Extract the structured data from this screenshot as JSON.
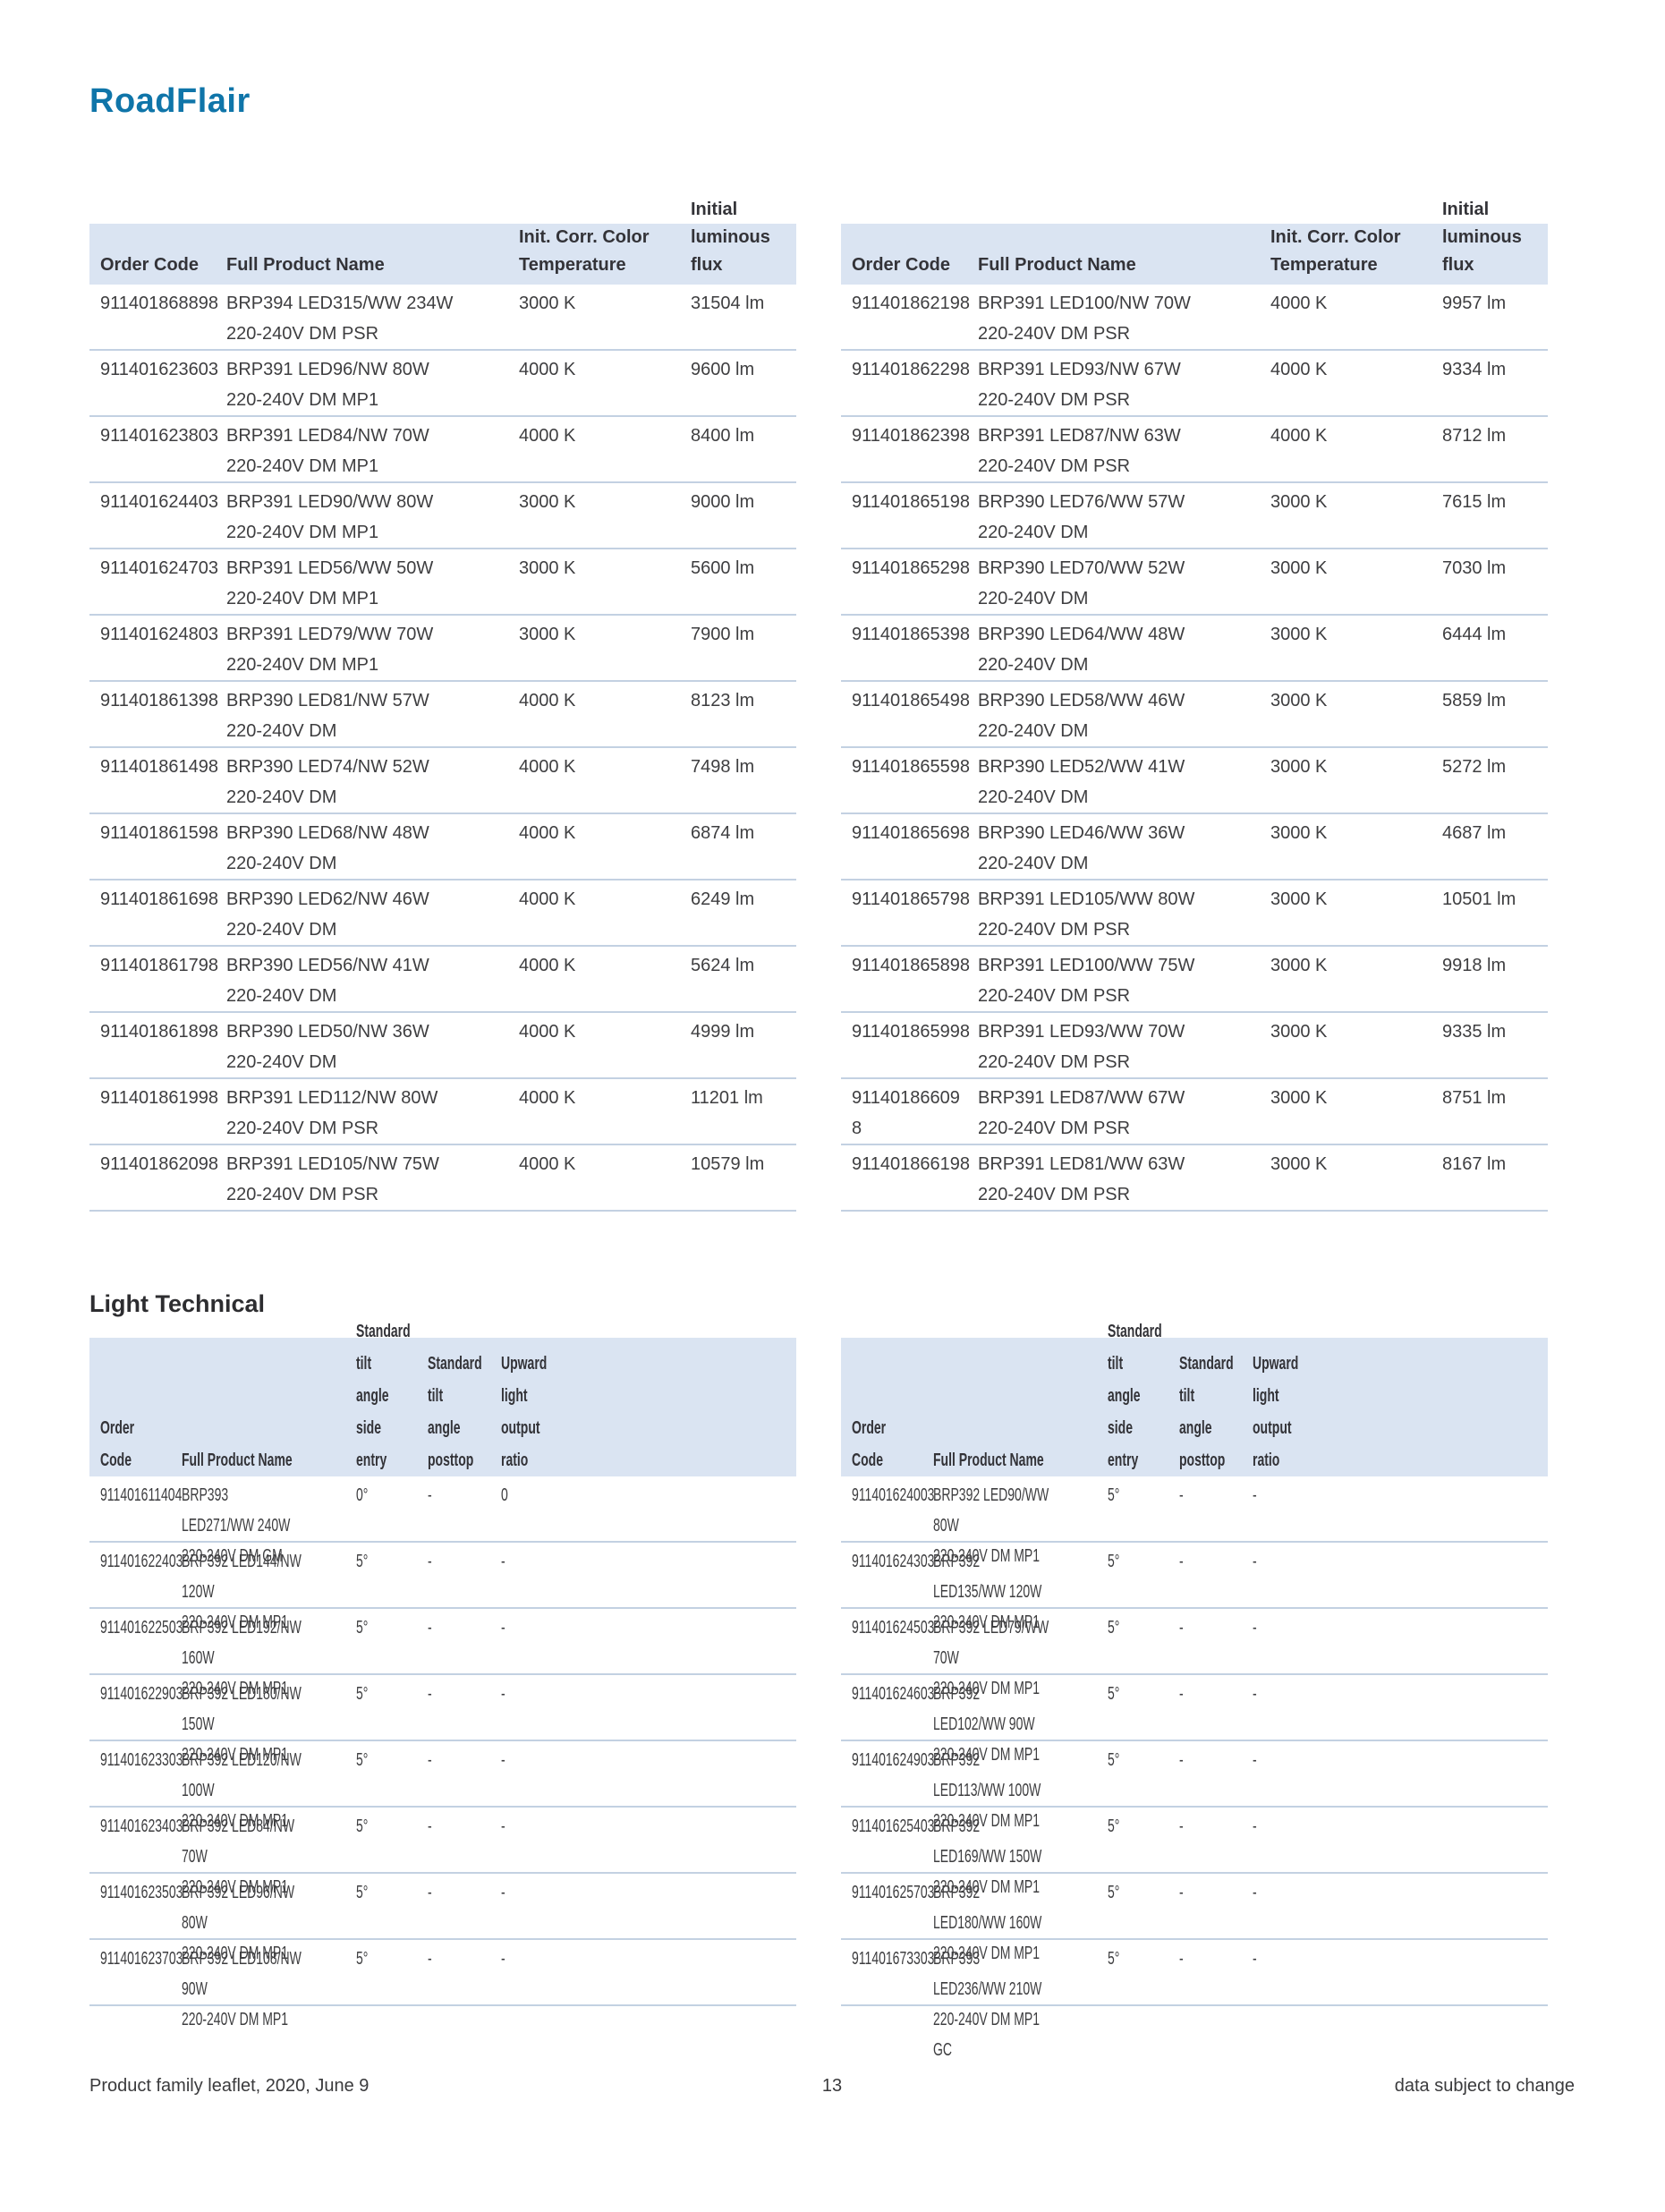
{
  "page": {
    "title": "RoadFlair",
    "section_light_technical": "Light Technical",
    "footer": {
      "left": "Product family leaflet, 2020, June 9",
      "page_number": "13",
      "right": "data subject to change"
    }
  },
  "colors": {
    "title_blue": "#0f75a9",
    "table_header_bg": "#dae4f2",
    "row_separator": "#c3d1e2",
    "body_text": "#3e3e40"
  },
  "ordering_tables": {
    "headers": {
      "order_code": "Order Code",
      "product_name": "Full Product Name",
      "temp_line1": "Init. Corr. Color",
      "temp_line2": "Temperature",
      "flux_line1": "Initial luminous",
      "flux_line2": "flux"
    },
    "left_rows": [
      {
        "code": "911401868898",
        "name_line1": "BRP394 LED315/WW 234W",
        "name_line2": "220-240V DM PSR",
        "temp": "3000 K",
        "flux": "31504 lm"
      },
      {
        "code": "911401623603",
        "name_line1": "BRP391 LED96/NW 80W",
        "name_line2": "220-240V DM MP1",
        "temp": "4000 K",
        "flux": "9600 lm"
      },
      {
        "code": "911401623803",
        "name_line1": "BRP391 LED84/NW 70W",
        "name_line2": "220-240V DM MP1",
        "temp": "4000 K",
        "flux": "8400 lm"
      },
      {
        "code": "911401624403",
        "name_line1": "BRP391 LED90/WW 80W",
        "name_line2": "220-240V DM MP1",
        "temp": "3000 K",
        "flux": "9000 lm"
      },
      {
        "code": "911401624703",
        "name_line1": "BRP391 LED56/WW 50W",
        "name_line2": "220-240V DM MP1",
        "temp": "3000 K",
        "flux": "5600 lm"
      },
      {
        "code": "911401624803",
        "name_line1": "BRP391 LED79/WW 70W",
        "name_line2": "220-240V DM MP1",
        "temp": "3000 K",
        "flux": "7900 lm"
      },
      {
        "code": "911401861398",
        "name_line1": "BRP390 LED81/NW 57W",
        "name_line2": "220-240V DM",
        "temp": "4000 K",
        "flux": "8123 lm"
      },
      {
        "code": "911401861498",
        "name_line1": "BRP390 LED74/NW 52W",
        "name_line2": "220-240V DM",
        "temp": "4000 K",
        "flux": "7498 lm"
      },
      {
        "code": "911401861598",
        "name_line1": "BRP390 LED68/NW 48W",
        "name_line2": "220-240V DM",
        "temp": "4000 K",
        "flux": "6874 lm"
      },
      {
        "code": "911401861698",
        "name_line1": "BRP390 LED62/NW 46W",
        "name_line2": "220-240V DM",
        "temp": "4000 K",
        "flux": "6249 lm"
      },
      {
        "code": "911401861798",
        "name_line1": "BRP390 LED56/NW 41W",
        "name_line2": "220-240V DM",
        "temp": "4000 K",
        "flux": "5624 lm"
      },
      {
        "code": "911401861898",
        "name_line1": "BRP390 LED50/NW 36W",
        "name_line2": "220-240V DM",
        "temp": "4000 K",
        "flux": "4999 lm"
      },
      {
        "code": "911401861998",
        "name_line1": "BRP391 LED112/NW 80W",
        "name_line2": "220-240V DM PSR",
        "temp": "4000 K",
        "flux": "11201 lm"
      },
      {
        "code": "911401862098",
        "name_line1": "BRP391 LED105/NW 75W",
        "name_line2": "220-240V DM PSR",
        "temp": "4000 K",
        "flux": "10579 lm"
      }
    ],
    "right_rows": [
      {
        "code": "911401862198",
        "name_line1": "BRP391 LED100/NW 70W",
        "name_line2": "220-240V DM PSR",
        "temp": "4000 K",
        "flux": "9957 lm"
      },
      {
        "code": "911401862298",
        "name_line1": "BRP391 LED93/NW 67W",
        "name_line2": "220-240V DM PSR",
        "temp": "4000 K",
        "flux": "9334 lm"
      },
      {
        "code": "911401862398",
        "name_line1": "BRP391 LED87/NW 63W",
        "name_line2": "220-240V DM PSR",
        "temp": "4000 K",
        "flux": "8712 lm"
      },
      {
        "code": "911401865198",
        "name_line1": "BRP390 LED76/WW 57W",
        "name_line2": "220-240V DM",
        "temp": "3000 K",
        "flux": "7615 lm"
      },
      {
        "code": "911401865298",
        "name_line1": "BRP390 LED70/WW 52W",
        "name_line2": "220-240V DM",
        "temp": "3000 K",
        "flux": "7030 lm"
      },
      {
        "code": "911401865398",
        "name_line1": "BRP390 LED64/WW 48W",
        "name_line2": "220-240V DM",
        "temp": "3000 K",
        "flux": "6444 lm"
      },
      {
        "code": "911401865498",
        "name_line1": "BRP390 LED58/WW 46W",
        "name_line2": "220-240V DM",
        "temp": "3000 K",
        "flux": "5859 lm"
      },
      {
        "code": "911401865598",
        "name_line1": "BRP390 LED52/WW 41W",
        "name_line2": "220-240V DM",
        "temp": "3000 K",
        "flux": "5272 lm"
      },
      {
        "code": "911401865698",
        "name_line1": "BRP390 LED46/WW 36W",
        "name_line2": "220-240V DM",
        "temp": "3000 K",
        "flux": "4687 lm"
      },
      {
        "code": "911401865798",
        "name_line1": "BRP391 LED105/WW 80W",
        "name_line2": "220-240V DM PSR",
        "temp": "3000 K",
        "flux": "10501 lm"
      },
      {
        "code": "911401865898",
        "name_line1": "BRP391 LED100/WW 75W",
        "name_line2": "220-240V DM PSR",
        "temp": "3000 K",
        "flux": "9918 lm"
      },
      {
        "code": "911401865998",
        "name_line1": "BRP391 LED93/WW 70W",
        "name_line2": "220-240V DM PSR",
        "temp": "3000 K",
        "flux": "9335 lm"
      },
      {
        "code": "91140186609\n8",
        "name_line1": "BRP391 LED87/WW 67W",
        "name_line2": "220-240V DM PSR",
        "temp": "3000 K",
        "flux": "8751 lm"
      },
      {
        "code": "911401866198",
        "name_line1": "BRP391 LED81/WW 63W",
        "name_line2": "220-240V DM PSR",
        "temp": "3000 K",
        "flux": "8167 lm"
      }
    ]
  },
  "light_technical_tables": {
    "headers": {
      "order_code": "Order Code",
      "product_name": "Full Product Name",
      "side_l1": "Standard",
      "side_l2": "tilt angle",
      "side_l3": "side entry",
      "post_l1": "Standard",
      "post_l2": "tilt angle",
      "post_l3": "posttop",
      "ratio_l1": "Upward",
      "ratio_l2": "light",
      "ratio_l3": "output",
      "ratio_l4": "ratio"
    },
    "left_rows": [
      {
        "code": "911401611404",
        "name_line1": "BRP393 LED271/WW 240W",
        "name_line2": "220-240V DM GM",
        "tilt_side": "0°",
        "tilt_post": "-",
        "uplight": "0"
      },
      {
        "code": "911401622403",
        "name_line1": "BRP392 LED144/NW 120W",
        "name_line2": "220-240V DM MP1",
        "tilt_side": "5°",
        "tilt_post": "-",
        "uplight": "-"
      },
      {
        "code": "911401622503",
        "name_line1": "BRP392 LED192/NW 160W",
        "name_line2": "220-240V DM MP1",
        "tilt_side": "5°",
        "tilt_post": "-",
        "uplight": "-"
      },
      {
        "code": "911401622903",
        "name_line1": "BRP392 LED180/NW 150W",
        "name_line2": "220-240V DM MP1",
        "tilt_side": "5°",
        "tilt_post": "-",
        "uplight": "-"
      },
      {
        "code": "911401623303",
        "name_line1": "BRP392 LED120/NW 100W",
        "name_line2": "220-240V DM MP1",
        "tilt_side": "5°",
        "tilt_post": "-",
        "uplight": "-"
      },
      {
        "code": "911401623403",
        "name_line1": "BRP392 LED84/NW 70W",
        "name_line2": "220-240V DM MP1",
        "tilt_side": "5°",
        "tilt_post": "-",
        "uplight": "-"
      },
      {
        "code": "911401623503",
        "name_line1": "BRP392 LED96/NW 80W",
        "name_line2": "220-240V DM MP1",
        "tilt_side": "5°",
        "tilt_post": "-",
        "uplight": "-"
      },
      {
        "code": "911401623703",
        "name_line1": "BRP392 LED108/NW 90W",
        "name_line2": "220-240V DM MP1",
        "tilt_side": "5°",
        "tilt_post": "-",
        "uplight": "-"
      }
    ],
    "right_rows": [
      {
        "code": "911401624003",
        "name_line1": "BRP392 LED90/WW 80W",
        "name_line2": "220-240V DM MP1",
        "tilt_side": "5°",
        "tilt_post": "-",
        "uplight": "-"
      },
      {
        "code": "911401624303",
        "name_line1": "BRP392 LED135/WW 120W",
        "name_line2": "220-240V DM MP1",
        "tilt_side": "5°",
        "tilt_post": "-",
        "uplight": "-"
      },
      {
        "code": "911401624503",
        "name_line1": "BRP392 LED79/WW 70W",
        "name_line2": "220-240V DM MP1",
        "tilt_side": "5°",
        "tilt_post": "-",
        "uplight": "-"
      },
      {
        "code": "911401624603",
        "name_line1": "BRP392 LED102/WW 90W",
        "name_line2": "220-240V DM MP1",
        "tilt_side": "5°",
        "tilt_post": "-",
        "uplight": "-"
      },
      {
        "code": "911401624903",
        "name_line1": "BRP392 LED113/WW 100W",
        "name_line2": "220-240V DM MP1",
        "tilt_side": "5°",
        "tilt_post": "-",
        "uplight": "-"
      },
      {
        "code": "911401625403",
        "name_line1": "BRP392 LED169/WW 150W",
        "name_line2": "220-240V DM MP1",
        "tilt_side": "5°",
        "tilt_post": "-",
        "uplight": "-"
      },
      {
        "code": "911401625703",
        "name_line1": "BRP392 LED180/WW 160W",
        "name_line2": "220-240V DM MP1",
        "tilt_side": "5°",
        "tilt_post": "-",
        "uplight": "-"
      },
      {
        "code": "911401673303",
        "name_line1": "BRP393 LED236/WW 210W",
        "name_line2": "220-240V DM MP1 GC",
        "tilt_side": "5°",
        "tilt_post": "-",
        "uplight": "-"
      }
    ]
  }
}
